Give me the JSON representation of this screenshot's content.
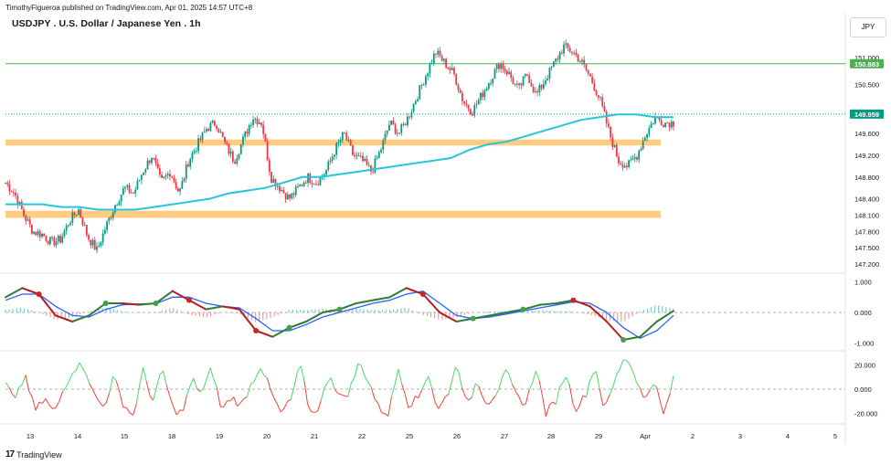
{
  "header": {
    "published": "TimothyFigueroa published on TradingView.com, Apr 01, 2025 14:57 UTC+8",
    "title": "USDJPY . U.S. Dollar / Japanese Yen . 1h",
    "currency": "JPY"
  },
  "footer": {
    "brand": "TradingView",
    "logo_text": "17"
  },
  "colors": {
    "up": "#089981",
    "down": "#f23645",
    "ma": "#26c6da",
    "zone": "#ffcc80",
    "hline": "#4caf50",
    "last": "#089981",
    "macd_fast": "#2e7d32",
    "macd_slow": "#2962ff",
    "macd_down": "#b71c1c",
    "osc_up": "#4cd964",
    "osc_down": "#f44336"
  },
  "chart_data": {
    "type": "candlestick",
    "symbol": "USDJPY",
    "x_ticks": [
      "13",
      "14",
      "15",
      "18",
      "19",
      "20",
      "21",
      "22",
      "25",
      "26",
      "27",
      "28",
      "29",
      "Apr",
      "2",
      "3",
      "4",
      "5"
    ],
    "price_axis": {
      "ticks": [
        151.0,
        150.5,
        149.6,
        149.2,
        148.8,
        148.4,
        148.1,
        147.8,
        147.5,
        147.2
      ],
      "labels": [
        "151.000",
        "150.500",
        "149.600",
        "149.200",
        "148.800",
        "148.400",
        "148.100",
        "147.800",
        "147.500",
        "147.200"
      ],
      "ylim": [
        147.05,
        151.35
      ]
    },
    "horizontal_line": {
      "value": 150.883,
      "label": "150.883"
    },
    "last_price": {
      "value": 149.959,
      "label": "149.959"
    },
    "zones": [
      {
        "from": 149.38,
        "to": 149.49
      },
      {
        "from": 148.05,
        "to": 148.18
      }
    ],
    "price_path": [
      148.7,
      148.5,
      148.1,
      147.8,
      147.75,
      147.6,
      147.65,
      148.0,
      148.2,
      147.7,
      147.45,
      147.9,
      148.3,
      148.6,
      148.5,
      148.9,
      149.2,
      148.7,
      148.9,
      148.5,
      149.1,
      149.4,
      149.7,
      149.8,
      149.4,
      149.1,
      149.5,
      149.9,
      149.8,
      148.8,
      148.6,
      148.4,
      148.6,
      148.8,
      148.7,
      148.9,
      149.3,
      149.6,
      149.2,
      149.1,
      148.9,
      149.3,
      149.8,
      149.6,
      149.9,
      150.3,
      150.7,
      151.1,
      150.9,
      150.7,
      150.2,
      150.0,
      150.3,
      150.6,
      150.9,
      150.7,
      150.4,
      150.7,
      150.3,
      150.6,
      150.9,
      151.2,
      151.1,
      150.9,
      150.6,
      150.2,
      149.6,
      149.1,
      149.0,
      149.2,
      149.6,
      149.9,
      149.8,
      149.8
    ],
    "ma_path": [
      148.3,
      148.3,
      148.3,
      148.25,
      148.25,
      148.2,
      148.2,
      148.2,
      148.25,
      148.3,
      148.35,
      148.4,
      148.5,
      148.55,
      148.6,
      148.7,
      148.8,
      148.8,
      148.85,
      148.9,
      148.95,
      149.0,
      149.05,
      149.1,
      149.15,
      149.3,
      149.4,
      149.45,
      149.55,
      149.65,
      149.75,
      149.85,
      149.9,
      149.95,
      149.95,
      149.9,
      149.9
    ],
    "panels": [
      {
        "name": "macd",
        "ticks": [
          "1.000",
          "0.000",
          "-1.000"
        ],
        "ylim": [
          -1.2,
          1.2
        ],
        "fast": [
          0.5,
          0.8,
          0.6,
          -0.1,
          -0.3,
          -0.1,
          0.3,
          0.3,
          0.25,
          0.3,
          0.7,
          0.4,
          0.1,
          0.2,
          0.1,
          -0.6,
          -0.8,
          -0.5,
          -0.3,
          0.0,
          0.1,
          0.3,
          0.4,
          0.5,
          0.8,
          0.6,
          0.0,
          -0.3,
          -0.2,
          -0.1,
          0.0,
          0.1,
          0.25,
          0.3,
          0.4,
          0.2,
          -0.3,
          -0.9,
          -0.8,
          -0.3,
          0.05
        ],
        "slow": [
          0.4,
          0.6,
          0.6,
          0.2,
          -0.1,
          -0.15,
          0.1,
          0.25,
          0.28,
          0.29,
          0.5,
          0.5,
          0.3,
          0.2,
          0.15,
          -0.2,
          -0.6,
          -0.6,
          -0.4,
          -0.15,
          0.0,
          0.15,
          0.3,
          0.4,
          0.6,
          0.7,
          0.3,
          -0.1,
          -0.2,
          -0.15,
          -0.05,
          0.05,
          0.15,
          0.25,
          0.35,
          0.3,
          0.0,
          -0.5,
          -0.85,
          -0.6,
          -0.1
        ],
        "cross_points": [
          2,
          6,
          9,
          11,
          15,
          17,
          20,
          25,
          28,
          31,
          34,
          37
        ]
      },
      {
        "name": "oscillator",
        "ticks": [
          "20.000",
          "0.000",
          "-20.000"
        ],
        "ylim": [
          -27,
          30
        ],
        "values": [
          5,
          -10,
          12,
          -18,
          -8,
          -20,
          2,
          18,
          20,
          -5,
          -15,
          10,
          -12,
          -22,
          15,
          -10,
          16,
          -16,
          -20,
          8,
          -4,
          18,
          -18,
          -6,
          -14,
          4,
          20,
          -2,
          -20,
          -10,
          20,
          -20,
          -14,
          14,
          -8,
          -2,
          22,
          6,
          -16,
          -20,
          18,
          -12,
          -8,
          14,
          -18,
          -4,
          22,
          -16,
          8,
          -12,
          -2,
          14,
          -6,
          -12,
          18,
          -20,
          -10,
          14,
          -16,
          -6,
          20,
          -18,
          6,
          28,
          14,
          -10,
          8,
          -22,
          8
        ]
      }
    ]
  }
}
